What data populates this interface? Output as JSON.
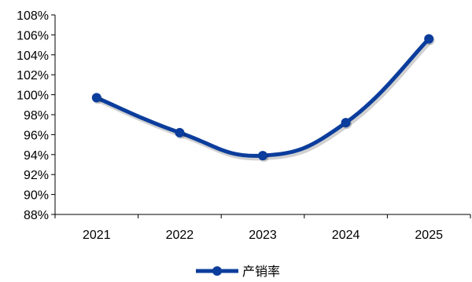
{
  "chart_data": {
    "type": "line",
    "categories": [
      "2021",
      "2022",
      "2023",
      "2024",
      "2025"
    ],
    "series": [
      {
        "name": "产销率",
        "values": [
          99.7,
          96.2,
          93.9,
          97.2,
          105.6
        ],
        "color": "#0B3D9C"
      }
    ],
    "ylim": [
      88,
      108
    ],
    "ytick_step": 2,
    "ytick_suffix": "%",
    "grid": false,
    "smooth": true,
    "markers": true,
    "legend": "bottom"
  }
}
